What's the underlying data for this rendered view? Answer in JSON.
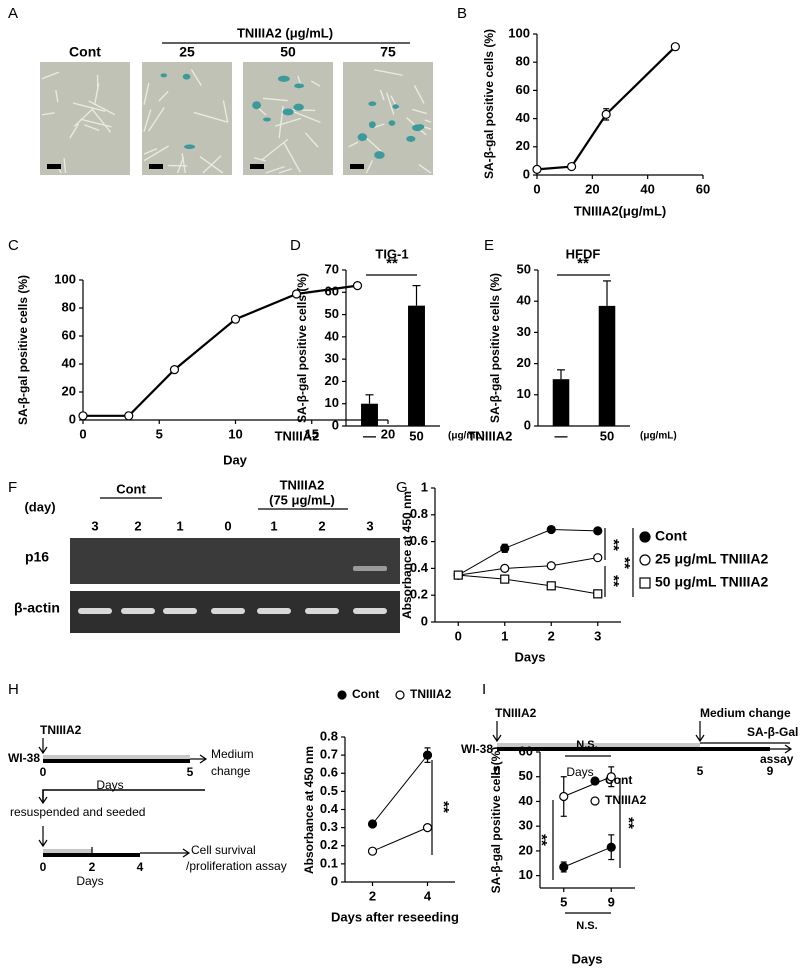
{
  "panel_labels": [
    "A",
    "B",
    "C",
    "D",
    "E",
    "F",
    "G",
    "H",
    "I"
  ],
  "micrographs": {
    "header": "TNIIIA2 (μg/mL)",
    "labels": [
      "Cont",
      "25",
      "50",
      "75"
    ]
  },
  "gel": {
    "day_label": "(day)",
    "control": "Cont",
    "treatment": "TNIIIA2",
    "treatment_dose": "(75 μg/mL)",
    "lanes": [
      "3",
      "2",
      "1",
      "0",
      "1",
      "2",
      "3"
    ],
    "rows": [
      "p16",
      "β-actin"
    ]
  },
  "timeline_h": {
    "treatment": "TNIIIA2",
    "cells": "WI-38",
    "ticks": [
      "0",
      "5"
    ],
    "axis": "Days",
    "end": [
      "Medium",
      "change"
    ],
    "step": "resuspended and seeded",
    "ticks2": [
      "0",
      "2",
      "4"
    ],
    "axis2": "Days",
    "assay": [
      "Cell survival",
      "/proliferation assay"
    ]
  },
  "timeline_i": {
    "treatment": "TNIIIA2",
    "event": "Medium change",
    "cells": "WI-38",
    "ticks": [
      "0",
      "5",
      "9"
    ],
    "axis": "Days",
    "assay": [
      "SA-β-Gal",
      "assay"
    ]
  },
  "chart_data": [
    {
      "type": "line",
      "ylabel": "SA-β-gal positive cells (%)",
      "xlabel": "TNIIIA2(μg/mL)",
      "x": [
        0,
        12.5,
        25,
        50
      ],
      "series": [
        {
          "color": "#000000",
          "fill": "#ffffff",
          "marker": "circle",
          "values": [
            4,
            6,
            43,
            91
          ],
          "errors": [
            null,
            null,
            4,
            null
          ]
        }
      ],
      "xlim": [
        0,
        60
      ],
      "xticks": [
        0,
        20,
        40,
        60
      ],
      "ylim": [
        0,
        100
      ],
      "yticks": [
        0,
        20,
        40,
        60,
        80,
        100
      ]
    },
    {
      "type": "line",
      "ylabel": "SA-β-gal positive cells (%)",
      "xlabel": "Day",
      "x": [
        0,
        3,
        6,
        10,
        14,
        18
      ],
      "series": [
        {
          "color": "#000000",
          "fill": "#ffffff",
          "marker": "circle",
          "values": [
            3,
            3,
            36,
            72,
            90,
            96
          ]
        }
      ],
      "xlim": [
        0,
        20
      ],
      "xticks": [
        0,
        5,
        10,
        15,
        20
      ],
      "ylim": [
        0,
        100
      ],
      "yticks": [
        0,
        20,
        40,
        60,
        80,
        100
      ]
    },
    {
      "type": "bar",
      "title": "TIG-1",
      "ylabel": "SA-β-gal positive cells (%)",
      "xlabel": "TNIIIA2",
      "unit": "(μg/mL)",
      "categories": [
        "—",
        "50"
      ],
      "values": [
        10,
        54
      ],
      "errors": [
        4,
        9
      ],
      "color": "#000000",
      "ylim": [
        0,
        70
      ],
      "yticks": [
        0,
        10,
        20,
        30,
        40,
        50,
        60,
        70
      ],
      "annotations": [
        "**"
      ]
    },
    {
      "type": "bar",
      "title": "HFDF",
      "ylabel": "SA-β-gal positive cells (%)",
      "xlabel": "TNIIIA2",
      "unit": "(μg/mL)",
      "categories": [
        "—",
        "50"
      ],
      "values": [
        15,
        38.5
      ],
      "errors": [
        3,
        8
      ],
      "color": "#000000",
      "ylim": [
        0,
        50
      ],
      "yticks": [
        0,
        10,
        20,
        30,
        40,
        50
      ],
      "annotations": [
        "**"
      ]
    },
    {
      "type": "line",
      "ylabel": "Absorbance at 450 nm",
      "xlabel": "Days",
      "x": [
        0,
        1,
        2,
        3
      ],
      "series": [
        {
          "name": "Cont",
          "color": "#000000",
          "fill": "#000000",
          "marker": "circle",
          "values": [
            0.35,
            0.55,
            0.69,
            0.68
          ],
          "errors": [
            null,
            0.03,
            null,
            null
          ]
        },
        {
          "name": "25 μg/mL TNIIIA2",
          "color": "#000000",
          "fill": "#ffffff",
          "marker": "circle",
          "values": [
            0.35,
            0.4,
            0.42,
            0.48
          ]
        },
        {
          "name": "50 μg/mL TNIIIA2",
          "color": "#000000",
          "fill": "#ffffff",
          "marker": "square",
          "values": [
            0.35,
            0.32,
            0.27,
            0.21
          ]
        }
      ],
      "xlim": [
        -0.5,
        3.5
      ],
      "xticks": [
        0,
        1,
        2,
        3
      ],
      "ylim": [
        0,
        1
      ],
      "yticks": [
        0,
        0.2,
        0.4,
        0.6,
        0.8,
        1
      ],
      "annotations": [
        "**",
        "**",
        "**"
      ]
    },
    {
      "type": "line",
      "ylabel": "Absorbance at 450 nm",
      "xlabel": "Days after reseeding",
      "categories": [
        "2",
        "4"
      ],
      "series": [
        {
          "name": "Cont",
          "color": "#000000",
          "fill": "#000000",
          "marker": "circle",
          "values": [
            0.32,
            0.7
          ],
          "errors": [
            null,
            0.04
          ]
        },
        {
          "name": "TNIIIA2",
          "color": "#000000",
          "fill": "#ffffff",
          "marker": "circle",
          "values": [
            0.17,
            0.3
          ]
        }
      ],
      "ylim": [
        0,
        0.8
      ],
      "yticks": [
        0,
        0.1,
        0.2,
        0.3,
        0.4,
        0.5,
        0.6,
        0.7,
        0.8
      ],
      "annotations": [
        "**"
      ]
    },
    {
      "type": "line",
      "ylabel": "SA-β-gal positive cells(%)",
      "xlabel": "Days",
      "categories": [
        "5",
        "9"
      ],
      "series": [
        {
          "name": "Cont",
          "color": "#000000",
          "fill": "#000000",
          "marker": "circle",
          "values": [
            13.5,
            21.5
          ],
          "errors": [
            2,
            5
          ]
        },
        {
          "name": "TNIIIA2",
          "color": "#000000",
          "fill": "#ffffff",
          "marker": "circle",
          "values": [
            42,
            50
          ],
          "errors": [
            8,
            4
          ]
        }
      ],
      "ylim": [
        5,
        60
      ],
      "yticks": [
        10,
        20,
        30,
        40,
        50,
        60
      ],
      "annotations": [
        "N.S.",
        "N.S.",
        "**",
        "**"
      ]
    }
  ]
}
